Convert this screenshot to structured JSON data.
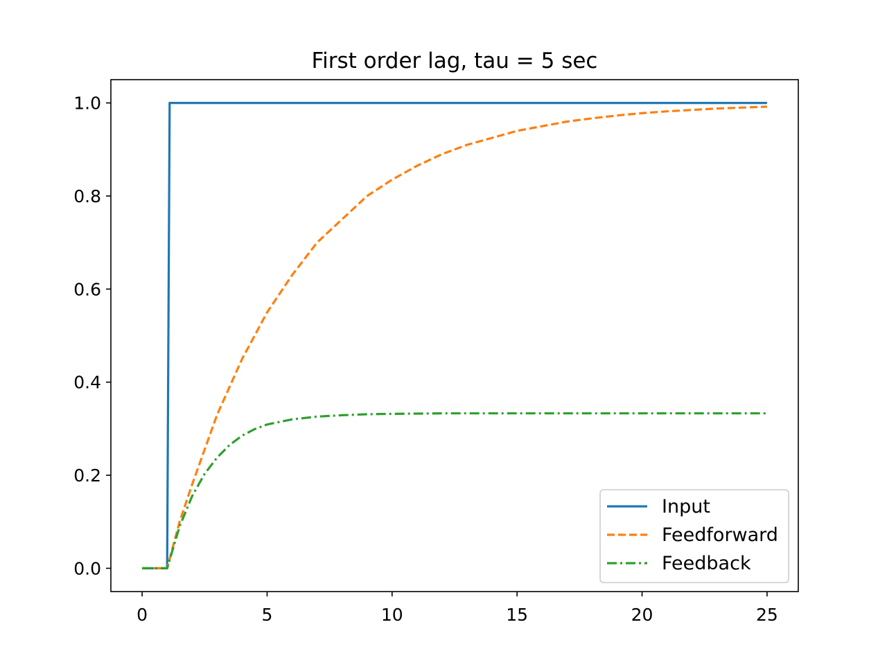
{
  "chart_data": {
    "type": "line",
    "title": "First order lag, tau = 5 sec",
    "xlabel": "",
    "ylabel": "",
    "xlim": [
      -1.25,
      26.25
    ],
    "ylim": [
      -0.05,
      1.05
    ],
    "xticks": [
      0,
      5,
      10,
      15,
      20,
      25
    ],
    "xtick_labels": [
      "0",
      "5",
      "10",
      "15",
      "20",
      "25"
    ],
    "yticks": [
      0.0,
      0.2,
      0.4,
      0.6,
      0.8,
      1.0
    ],
    "ytick_labels": [
      "0.0",
      "0.2",
      "0.4",
      "0.6",
      "0.8",
      "1.0"
    ],
    "grid": false,
    "legend_position": "lower-right",
    "series": [
      {
        "name": "Input",
        "color": "#1f77b4",
        "style": "solid",
        "x": [
          0,
          1,
          1.1,
          25
        ],
        "y": [
          0,
          0,
          1,
          1
        ]
      },
      {
        "name": "Feedforward",
        "color": "#ff7f0e",
        "style": "dashed",
        "x": [
          0,
          1,
          1.5,
          2,
          3,
          4,
          5,
          6,
          7,
          8,
          9,
          10,
          11,
          12,
          13,
          14,
          15,
          16,
          17,
          18,
          19,
          20,
          21,
          22,
          23,
          24,
          25
        ],
        "y": [
          0,
          0,
          0.1,
          0.18,
          0.33,
          0.45,
          0.55,
          0.63,
          0.7,
          0.75,
          0.8,
          0.835,
          0.865,
          0.89,
          0.91,
          0.925,
          0.94,
          0.95,
          0.96,
          0.967,
          0.973,
          0.978,
          0.982,
          0.985,
          0.988,
          0.99,
          0.992
        ]
      },
      {
        "name": "Feedback",
        "color": "#2ca02c",
        "style": "dashdot",
        "x": [
          0,
          1,
          1.5,
          2,
          2.5,
          3,
          3.5,
          4,
          4.5,
          5,
          6,
          7,
          8,
          9,
          10,
          12,
          15,
          20,
          25
        ],
        "y": [
          0,
          0,
          0.09,
          0.155,
          0.203,
          0.238,
          0.265,
          0.285,
          0.299,
          0.309,
          0.32,
          0.326,
          0.329,
          0.331,
          0.332,
          0.333,
          0.333,
          0.333,
          0.333
        ]
      }
    ]
  }
}
